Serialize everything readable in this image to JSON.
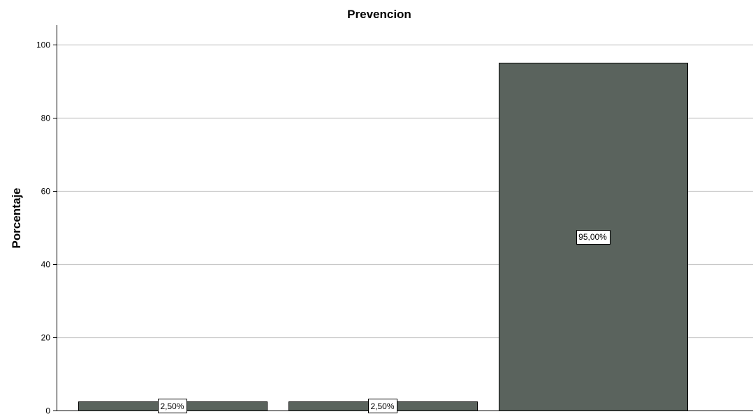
{
  "chart_data": {
    "type": "bar",
    "title": "Prevencion",
    "xlabel": "",
    "ylabel": "Porcentaje",
    "categories": [
      "",
      "",
      ""
    ],
    "values": [
      2.5,
      2.5,
      95.0
    ],
    "data_labels": [
      "2,50%",
      "2,50%",
      "95,00%"
    ],
    "ylim": [
      0,
      100
    ],
    "yticks": [
      "0",
      "20",
      "40",
      "60",
      "80",
      "100"
    ],
    "grid": true,
    "legend": "none",
    "colors": {
      "bar_fill": "#5a635d",
      "bar_stroke": "#000000",
      "grid": "#c8c8c8",
      "axis": "#000000"
    }
  }
}
